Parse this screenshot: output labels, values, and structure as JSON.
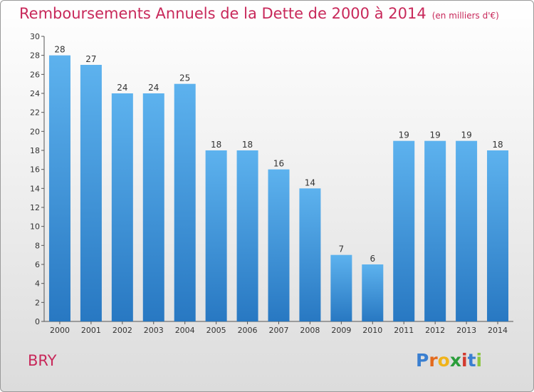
{
  "chart_data": {
    "type": "bar",
    "title": "Remboursements Annuels de la Dette de 2000 à 2014",
    "unit": "(en milliers d'€)",
    "categories": [
      "2000",
      "2001",
      "2002",
      "2003",
      "2004",
      "2005",
      "2006",
      "2007",
      "2008",
      "2009",
      "2010",
      "2011",
      "2012",
      "2013",
      "2014"
    ],
    "values": [
      28,
      27,
      24,
      24,
      25,
      18,
      18,
      16,
      14,
      7,
      6,
      19,
      19,
      19,
      18
    ],
    "ylim": [
      0,
      30
    ],
    "yticks": [
      0,
      2,
      4,
      6,
      8,
      10,
      12,
      14,
      16,
      18,
      20,
      22,
      24,
      26,
      28,
      30
    ],
    "grid": false,
    "bar_color": "#3a8fd8"
  },
  "city": "BRY",
  "logo": {
    "letters": [
      "P",
      "r",
      "o",
      "x",
      "i",
      "t",
      "i"
    ],
    "colors": [
      "#3a7fd0",
      "#e36a1e",
      "#f0b31a",
      "#2a9d3a",
      "#d23a2e",
      "#3a7fd0",
      "#8cc63f"
    ]
  }
}
